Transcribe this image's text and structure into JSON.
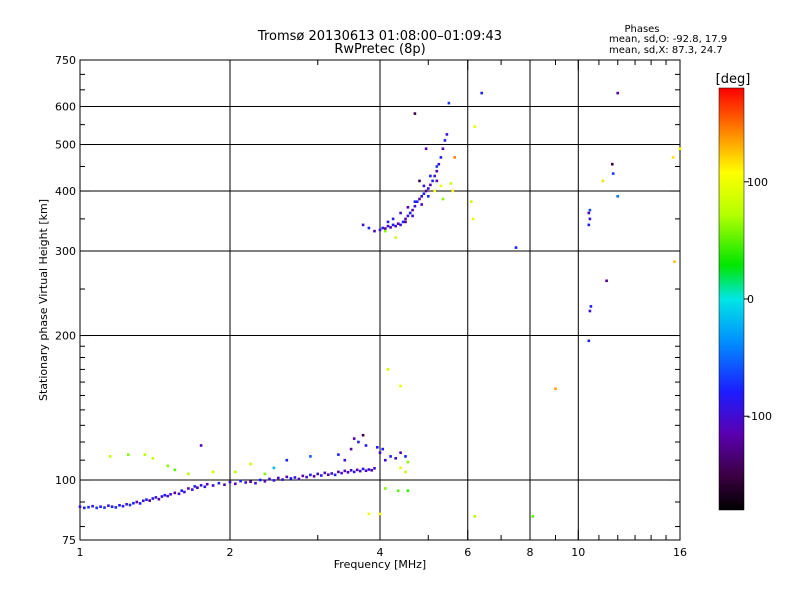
{
  "chart_data": {
    "type": "scatter",
    "title": "Tromsø 20130613 01:08:00–01:09:43",
    "subtitle": "RwPretec (8p)",
    "xlabel": "Frequency [MHz]",
    "ylabel": "Stationary phase Virtual Height [km]",
    "x_scale": "log",
    "y_scale": "log",
    "xlim": [
      1,
      16
    ],
    "ylim": [
      75,
      750
    ],
    "x_ticks": [
      1,
      2,
      4,
      6,
      8,
      10,
      16
    ],
    "x_tick_labels": [
      "1",
      "2",
      "4",
      "6",
      "8",
      "10",
      "16"
    ],
    "y_ticks": [
      75,
      100,
      200,
      300,
      400,
      500,
      600,
      750
    ],
    "y_tick_labels": [
      "75",
      "100",
      "200",
      "300",
      "400",
      "500",
      "600",
      "750"
    ],
    "grid_x": [
      2,
      4,
      6,
      8,
      10
    ],
    "grid_y": [
      100,
      200,
      300,
      400,
      500,
      600
    ],
    "phases": {
      "heading": "Phases",
      "line_o": "mean, sd,O: -92.8, 17.9",
      "line_x": "mean, sd,X: 87.3, 24.7"
    },
    "colorbar": {
      "label": "[deg]",
      "range": [
        -180,
        180
      ],
      "ticks": [
        100,
        0,
        -100
      ],
      "tick_labels": [
        "100",
        "0",
        "-100"
      ]
    },
    "series": [
      {
        "points": [
          [
            1.0,
            88,
            -110
          ],
          [
            1.02,
            87.5,
            -100
          ],
          [
            1.04,
            87.8,
            -95
          ],
          [
            1.06,
            88.2,
            -105
          ],
          [
            1.08,
            87.5,
            -90
          ],
          [
            1.1,
            88,
            -100
          ],
          [
            1.12,
            87.6,
            -95
          ],
          [
            1.14,
            88.4,
            -110
          ],
          [
            1.16,
            88,
            -100
          ],
          [
            1.18,
            87.7,
            -95
          ],
          [
            1.2,
            88.6,
            -105
          ],
          [
            1.22,
            88.2,
            -100
          ],
          [
            1.24,
            89,
            -110
          ],
          [
            1.26,
            88.7,
            -95
          ],
          [
            1.28,
            89.5,
            -100
          ],
          [
            1.3,
            90,
            -120
          ],
          [
            1.32,
            89.4,
            -100
          ],
          [
            1.34,
            90.5,
            -110
          ],
          [
            1.36,
            91,
            -100
          ],
          [
            1.38,
            90.6,
            -130
          ],
          [
            1.4,
            91.5,
            -110
          ],
          [
            1.42,
            92,
            -105
          ],
          [
            1.44,
            91.2,
            -120
          ],
          [
            1.46,
            92.4,
            -110
          ],
          [
            1.48,
            93,
            -100
          ],
          [
            1.5,
            92.6,
            -115
          ],
          [
            1.52,
            93.4,
            -110
          ],
          [
            1.55,
            94,
            -125
          ],
          [
            1.58,
            93.6,
            -110
          ],
          [
            1.6,
            95,
            -100
          ],
          [
            1.62,
            94.4,
            -110
          ],
          [
            1.65,
            96,
            -120
          ],
          [
            1.68,
            95.5,
            -110
          ],
          [
            1.7,
            97,
            -100
          ],
          [
            1.72,
            96.4,
            -130
          ],
          [
            1.75,
            97.5,
            -110
          ],
          [
            1.78,
            96.8,
            -105
          ],
          [
            1.8,
            98,
            -120
          ],
          [
            1.85,
            97.4,
            -110
          ],
          [
            1.9,
            98.5,
            -100
          ],
          [
            1.95,
            97.8,
            -115
          ],
          [
            2.0,
            99,
            -110
          ],
          [
            2.05,
            98.2,
            -120
          ],
          [
            2.1,
            99.5,
            -100
          ],
          [
            2.15,
            98.8,
            -110
          ],
          [
            2.2,
            99.2,
            -125
          ],
          [
            2.25,
            98.5,
            -110
          ],
          [
            2.3,
            100,
            -100
          ],
          [
            2.35,
            99.4,
            -120
          ],
          [
            2.4,
            100.5,
            -110
          ],
          [
            2.45,
            99.8,
            -105
          ],
          [
            2.5,
            101,
            -115
          ],
          [
            2.55,
            100.2,
            -110
          ],
          [
            2.6,
            101.5,
            -120
          ],
          [
            2.65,
            100.8,
            -100
          ],
          [
            2.7,
            101.2,
            -110
          ],
          [
            2.75,
            100.5,
            -115
          ],
          [
            2.8,
            102,
            -120
          ],
          [
            2.85,
            101.4,
            -110
          ],
          [
            2.9,
            102.5,
            -100
          ],
          [
            2.95,
            101.8,
            -120
          ],
          [
            3.0,
            103,
            -110
          ],
          [
            3.05,
            102.2,
            -105
          ],
          [
            3.1,
            103.5,
            -115
          ],
          [
            3.15,
            102.6,
            -120
          ],
          [
            3.2,
            103.2,
            -110
          ],
          [
            3.25,
            102.5,
            -100
          ],
          [
            3.3,
            104,
            -125
          ],
          [
            3.35,
            103.4,
            -110
          ],
          [
            3.4,
            104.5,
            -115
          ],
          [
            3.45,
            103.8,
            -120
          ],
          [
            3.5,
            104.8,
            -110
          ],
          [
            3.55,
            104,
            -105
          ],
          [
            3.6,
            105,
            -120
          ],
          [
            3.65,
            104.4,
            -110
          ],
          [
            3.7,
            105.5,
            -100
          ],
          [
            3.75,
            104.6,
            -115
          ],
          [
            3.8,
            105.2,
            -110
          ],
          [
            3.85,
            104.8,
            -120
          ],
          [
            3.9,
            105.8,
            -110
          ],
          [
            1.75,
            118,
            -120
          ],
          [
            2.2,
            108,
            60
          ],
          [
            2.45,
            106,
            -40
          ],
          [
            2.6,
            110,
            -100
          ],
          [
            2.9,
            112,
            -80
          ],
          [
            3.3,
            113,
            -100
          ],
          [
            3.4,
            110,
            -110
          ],
          [
            3.5,
            116,
            -120
          ],
          [
            3.55,
            122,
            -120
          ],
          [
            3.62,
            120,
            -100
          ],
          [
            3.7,
            124,
            -150
          ],
          [
            3.75,
            118,
            -100
          ],
          [
            3.95,
            117,
            -100
          ],
          [
            4.0,
            114,
            -110
          ],
          [
            4.05,
            116,
            -100
          ],
          [
            4.1,
            110,
            -110
          ],
          [
            4.2,
            112,
            -100
          ],
          [
            4.3,
            111,
            -110
          ],
          [
            4.4,
            114,
            -120
          ],
          [
            4.5,
            112,
            -100
          ],
          [
            4.55,
            109,
            40
          ],
          [
            4.4,
            106,
            80
          ],
          [
            4.5,
            104,
            60
          ],
          [
            4.1,
            96,
            40
          ],
          [
            4.35,
            95,
            30
          ],
          [
            4.55,
            95,
            20
          ],
          [
            4.0,
            85,
            90
          ],
          [
            3.8,
            85,
            80
          ],
          [
            4.15,
            170,
            70
          ],
          [
            4.4,
            157,
            80
          ],
          [
            1.15,
            112,
            60
          ],
          [
            1.25,
            113,
            40
          ],
          [
            1.35,
            113,
            50
          ],
          [
            1.4,
            111,
            60
          ],
          [
            1.5,
            107,
            40
          ],
          [
            1.55,
            105,
            30
          ],
          [
            1.65,
            103,
            50
          ],
          [
            1.85,
            104,
            60
          ],
          [
            2.05,
            104,
            50
          ],
          [
            2.35,
            103,
            40
          ]
        ]
      },
      {
        "points": [
          [
            3.7,
            340,
            -110
          ],
          [
            3.8,
            335,
            -100
          ],
          [
            3.9,
            330,
            -120
          ],
          [
            4.0,
            332,
            -110
          ],
          [
            4.05,
            335,
            -100
          ],
          [
            4.1,
            334,
            -130
          ],
          [
            4.15,
            338,
            -110
          ],
          [
            4.2,
            336,
            -120
          ],
          [
            4.25,
            340,
            -100
          ],
          [
            4.3,
            338,
            -110
          ],
          [
            4.35,
            342,
            -120
          ],
          [
            4.4,
            340,
            -110
          ],
          [
            4.45,
            345,
            -100
          ],
          [
            4.5,
            350,
            -120
          ],
          [
            4.55,
            355,
            -110
          ],
          [
            4.6,
            360,
            -100
          ],
          [
            4.65,
            365,
            -120
          ],
          [
            4.7,
            372,
            -110
          ],
          [
            4.75,
            380,
            -100
          ],
          [
            4.8,
            385,
            -120
          ],
          [
            4.85,
            390,
            -110
          ],
          [
            4.9,
            395,
            -100
          ],
          [
            4.95,
            400,
            -130
          ],
          [
            5.0,
            405,
            -110
          ],
          [
            5.05,
            412,
            -120
          ],
          [
            5.1,
            420,
            -100
          ],
          [
            5.15,
            430,
            -110
          ],
          [
            5.2,
            440,
            -120
          ],
          [
            5.25,
            455,
            -110
          ],
          [
            5.3,
            470,
            -100
          ],
          [
            5.35,
            490,
            -120
          ],
          [
            5.4,
            510,
            -100
          ],
          [
            5.45,
            525,
            -110
          ],
          [
            4.25,
            350,
            -100
          ],
          [
            4.4,
            360,
            -110
          ],
          [
            4.55,
            370,
            -120
          ],
          [
            4.7,
            380,
            -100
          ],
          [
            4.9,
            410,
            -110
          ],
          [
            5.05,
            430,
            -100
          ],
          [
            5.2,
            420,
            -120
          ],
          [
            4.15,
            345,
            -100
          ],
          [
            4.5,
            345,
            -130
          ],
          [
            4.65,
            355,
            -110
          ],
          [
            4.85,
            375,
            -120
          ],
          [
            5.0,
            390,
            -100
          ],
          [
            4.8,
            420,
            -150
          ],
          [
            5.2,
            450,
            -90
          ],
          [
            5.15,
            400,
            90
          ],
          [
            5.3,
            410,
            80
          ],
          [
            5.35,
            385,
            40
          ],
          [
            5.55,
            415,
            60
          ],
          [
            5.6,
            400,
            90
          ],
          [
            5.65,
            470,
            130
          ],
          [
            4.7,
            580,
            -150
          ],
          [
            4.95,
            490,
            -120
          ],
          [
            5.5,
            610,
            -90
          ],
          [
            6.4,
            640,
            -100
          ],
          [
            6.2,
            545,
            80
          ],
          [
            6.1,
            380,
            60
          ],
          [
            6.15,
            350,
            80
          ],
          [
            7.5,
            305,
            -100
          ],
          [
            4.3,
            320,
            60
          ],
          [
            4.1,
            330,
            40
          ]
        ]
      },
      {
        "points": [
          [
            10.5,
            360,
            -120
          ],
          [
            10.55,
            350,
            -110
          ],
          [
            10.5,
            340,
            -100
          ],
          [
            10.6,
            230,
            -100
          ],
          [
            10.55,
            225,
            -110
          ],
          [
            10.5,
            195,
            -100
          ],
          [
            11.4,
            260,
            -130
          ],
          [
            11.7,
            455,
            -150
          ],
          [
            11.75,
            435,
            -90
          ],
          [
            12.0,
            390,
            -70
          ],
          [
            12.0,
            640,
            -120
          ],
          [
            11.2,
            420,
            100
          ],
          [
            10.55,
            365,
            -80
          ],
          [
            15.5,
            470,
            100
          ],
          [
            16.0,
            490,
            90
          ],
          [
            15.6,
            285,
            110
          ],
          [
            9.0,
            155,
            120
          ],
          [
            8.1,
            84,
            30
          ],
          [
            6.2,
            84,
            50
          ]
        ]
      }
    ]
  }
}
